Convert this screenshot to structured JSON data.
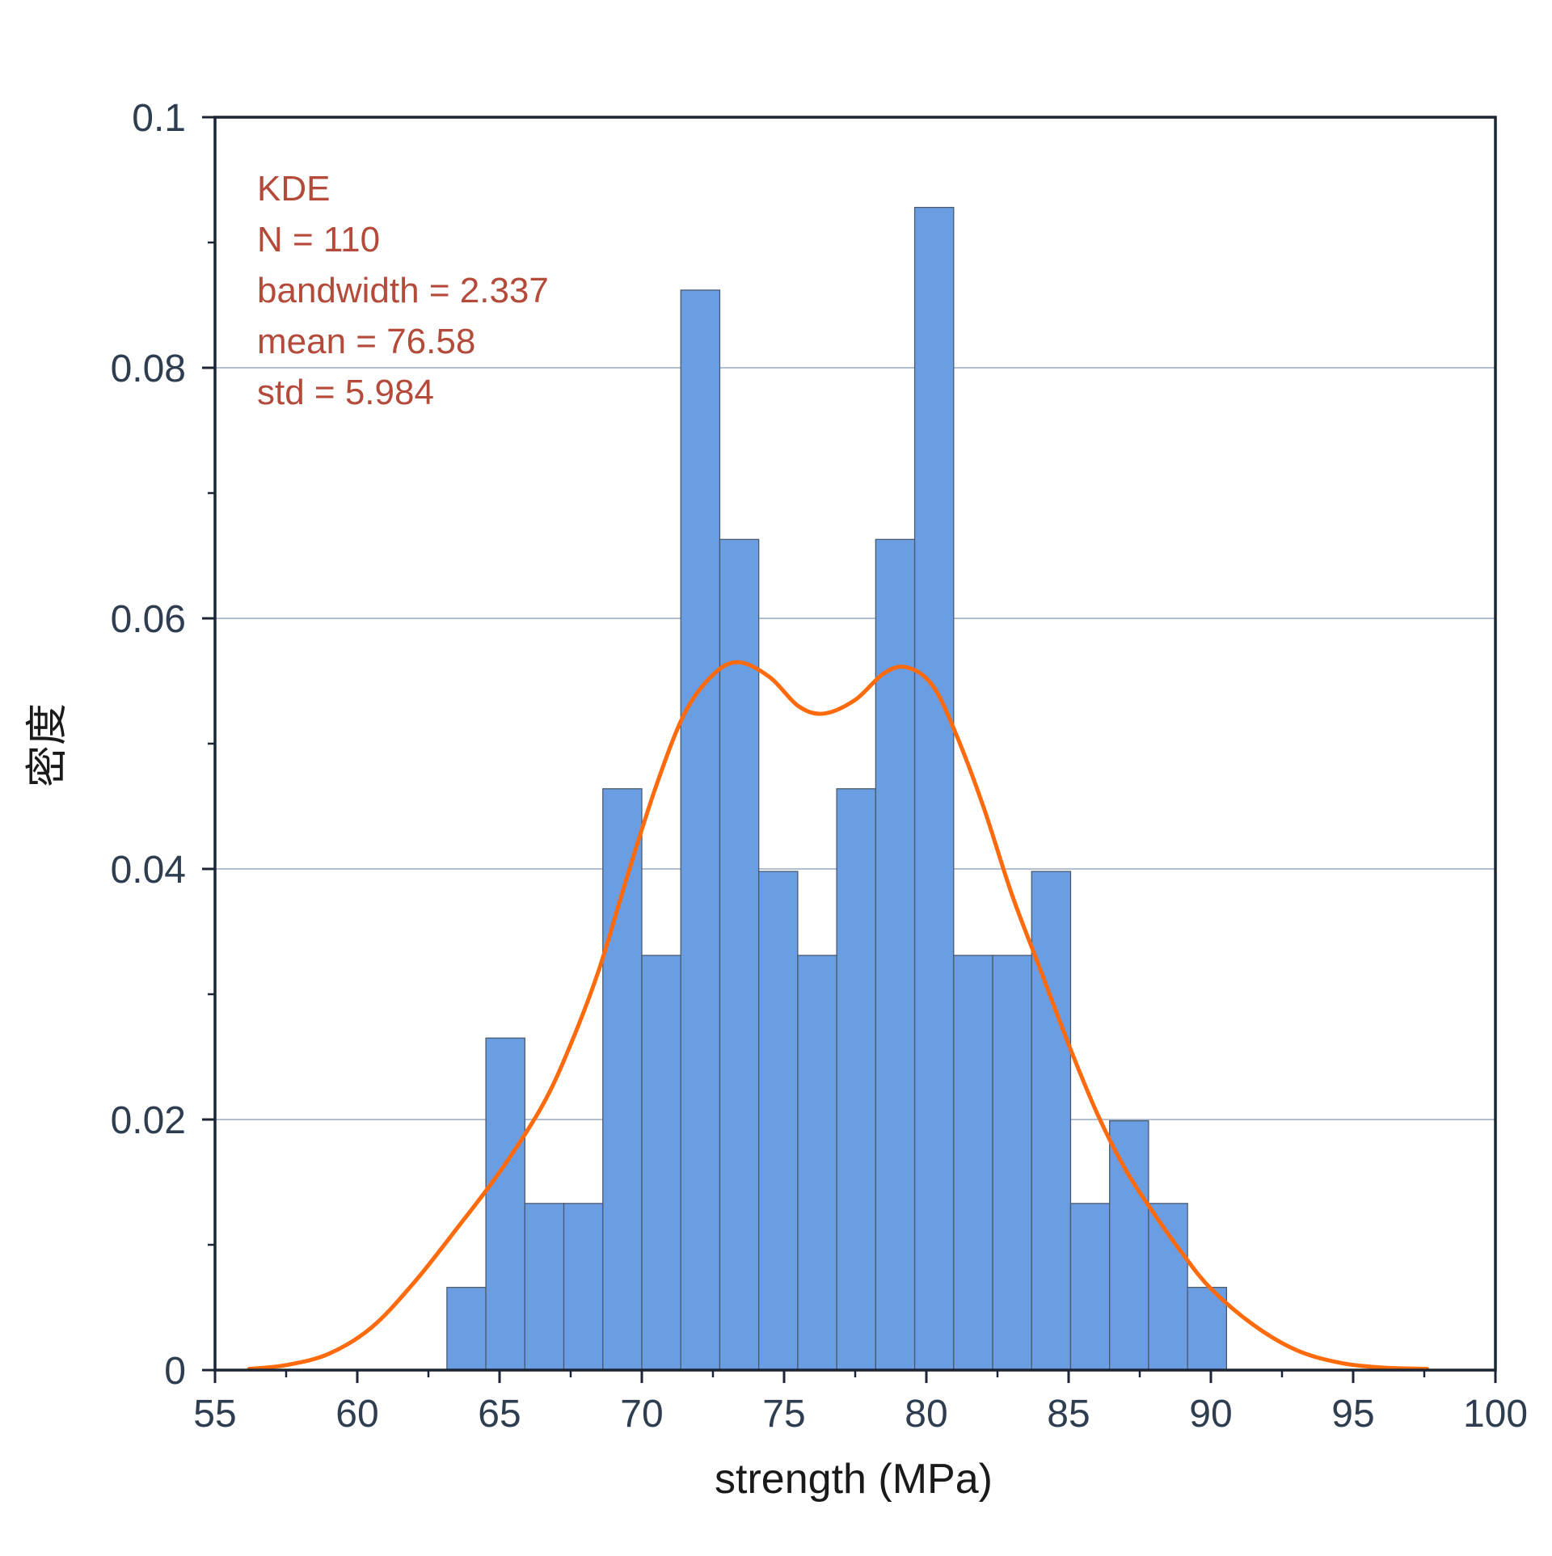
{
  "chart_data": {
    "type": "bar",
    "subtype": "histogram-with-kde",
    "title": "",
    "xlabel": "strength (MPa)",
    "ylabel": "密度",
    "xlim": [
      55,
      100
    ],
    "ylim": [
      0,
      0.1
    ],
    "x_ticks": [
      "55",
      "60",
      "65",
      "70",
      "75",
      "80",
      "85",
      "90",
      "95",
      "100"
    ],
    "y_ticks": [
      "0",
      "0.02",
      "0.04",
      "0.06",
      "0.08",
      "0.1"
    ],
    "y_tick_values": [
      0,
      0.02,
      0.04,
      0.06,
      0.08,
      0.1
    ],
    "x_tick_values": [
      55,
      60,
      65,
      70,
      75,
      80,
      85,
      90,
      95,
      100
    ],
    "grid": "horizontal",
    "bin_start": 63.15,
    "bin_width": 1.37,
    "histogram_density": [
      0.0066,
      0.0265,
      0.0133,
      0.0133,
      0.0464,
      0.0331,
      0.0862,
      0.0663,
      0.0398,
      0.0331,
      0.0464,
      0.0663,
      0.0928,
      0.0331,
      0.0331,
      0.0398,
      0.0133,
      0.0199,
      0.0133,
      0.0066
    ],
    "kde": {
      "x": [
        56.2,
        57.5,
        59.0,
        60.5,
        62.0,
        63.5,
        65.0,
        66.5,
        67.5,
        68.5,
        69.5,
        70.5,
        71.5,
        72.5,
        73.4,
        74.5,
        75.5,
        76.4,
        77.5,
        78.5,
        79.3,
        80.2,
        81.0,
        82.0,
        83.0,
        84.0,
        85.0,
        86.0,
        87.0,
        88.0,
        89.0,
        90.0,
        91.5,
        93.0,
        94.5,
        96.0,
        97.6
      ],
      "y": [
        0.0001,
        0.0004,
        0.0013,
        0.0034,
        0.007,
        0.0113,
        0.0158,
        0.0211,
        0.026,
        0.032,
        0.0395,
        0.0466,
        0.0524,
        0.0555,
        0.0565,
        0.0553,
        0.053,
        0.0524,
        0.0535,
        0.0556,
        0.0561,
        0.0547,
        0.051,
        0.045,
        0.038,
        0.032,
        0.026,
        0.0205,
        0.016,
        0.0125,
        0.0093,
        0.0065,
        0.0036,
        0.0016,
        0.0006,
        0.0002,
        0.0001
      ]
    },
    "annotation": [
      "KDE",
      "N = 110",
      "bandwidth = 2.337",
      "mean = 76.58",
      "std = 5.984"
    ],
    "colors": {
      "bar_fill": "#6b9de3",
      "bar_edge": "#4a5a6e",
      "kde_line": "#ff6a0d",
      "annotation_text": "#b44a3a",
      "grid": "#9aa9bd",
      "axis": "#1c2533",
      "tick_label": "#2e3e50"
    }
  }
}
